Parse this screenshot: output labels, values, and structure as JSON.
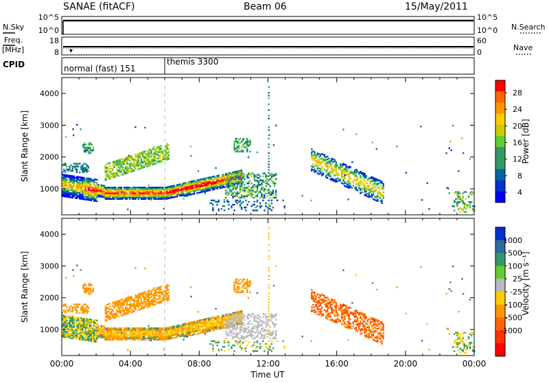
{
  "header": {
    "station": "SANAE (fitACF)",
    "beam": "Beam 06",
    "date": "15/May/2011"
  },
  "noise_panel": {
    "left_label": "N.Sky",
    "right_label": "N.Search",
    "left_ticks": [
      "10^5",
      "10^0"
    ],
    "right_ticks": [
      "10^5",
      "10^0"
    ]
  },
  "freq_panel": {
    "left_label_line1": "Freq.",
    "left_label_line2": "[MHz]",
    "right_label": "Nave",
    "left_ticks": [
      "18",
      "8"
    ],
    "right_ticks": [
      "60",
      "0"
    ]
  },
  "cpid_panel": {
    "label": "CPID",
    "modes": [
      {
        "text": "normal (fast) 151",
        "start_hour": 0
      },
      {
        "text": "themis 3300",
        "start_hour": 6
      }
    ]
  },
  "x_axis": {
    "label": "Time UT",
    "ticks": [
      "00:00",
      "04:00",
      "08:00",
      "12:00",
      "16:00",
      "20:00",
      "00:00"
    ],
    "range_hours": [
      0,
      24
    ]
  },
  "power_panel": {
    "ylabel": "Slant Range [km]",
    "yticks": [
      "4000",
      "3000",
      "2000",
      "1000"
    ],
    "colorbar_label": "Power [dB]",
    "colorbar_ticks": [
      "28",
      "24",
      "20",
      "16",
      "12",
      "8",
      "4"
    ],
    "colorbar_colors": [
      "#ff0000",
      "#ff6600",
      "#ff9900",
      "#ffcc00",
      "#cccc00",
      "#66cc33",
      "#339966",
      "#339966",
      "#006699",
      "#0033cc",
      "#0000ff"
    ]
  },
  "velocity_panel": {
    "ylabel": "Slant Range [km]",
    "yticks": [
      "4000",
      "3000",
      "2000",
      "1000"
    ],
    "colorbar_label": "Velocity [m s⁻¹]",
    "colorbar_ticks": [
      "1000",
      "500",
      "100",
      "25",
      "-25",
      "-100",
      "-500",
      "-1000"
    ],
    "colorbar_colors": [
      "#0033cc",
      "#2e6b9e",
      "#339966",
      "#66cc33",
      "#bbbbbb",
      "#ffcc00",
      "#ff9900",
      "#ff6600",
      "#ff3300",
      "#ff0000"
    ]
  },
  "chart_data": [
    {
      "type": "heatmap",
      "title": "Power",
      "xlabel": "Time UT",
      "ylabel": "Slant Range [km]",
      "xlim": [
        0,
        24
      ],
      "ylim": [
        180,
        4500
      ],
      "colorbar": {
        "label": "Power [dB]",
        "range": [
          0,
          30
        ]
      },
      "features": [
        {
          "name": "main band",
          "time_range": [
            0,
            10.5
          ],
          "slant_range_km": [
            650,
            1500
          ],
          "peak_db": 28
        },
        {
          "name": "upper band",
          "time_range": [
            2.5,
            6
          ],
          "slant_range_km": [
            1500,
            2300
          ],
          "peak_db": 14
        },
        {
          "name": "afternoon band",
          "time_range": [
            14.5,
            18.5
          ],
          "slant_range_km": [
            700,
            2000
          ],
          "peak_db": 18
        }
      ]
    },
    {
      "type": "heatmap",
      "title": "Velocity",
      "xlabel": "Time UT",
      "ylabel": "Slant Range [km]",
      "xlim": [
        0,
        24
      ],
      "ylim": [
        180,
        4500
      ],
      "colorbar": {
        "label": "Velocity [m s-1]",
        "range": [
          -1000,
          1000
        ]
      },
      "features": [
        {
          "name": "main band",
          "time_range": [
            0,
            10.5
          ],
          "slant_range_km": [
            600,
            1500
          ],
          "typical_velocity": -100
        },
        {
          "name": "ground scatter",
          "time_range": [
            9.5,
            13
          ],
          "slant_range_km": [
            700,
            1200
          ],
          "typical_velocity": 0
        },
        {
          "name": "afternoon band",
          "time_range": [
            14.5,
            18.5
          ],
          "slant_range_km": [
            700,
            2200
          ],
          "typical_velocity": -500
        }
      ]
    }
  ]
}
